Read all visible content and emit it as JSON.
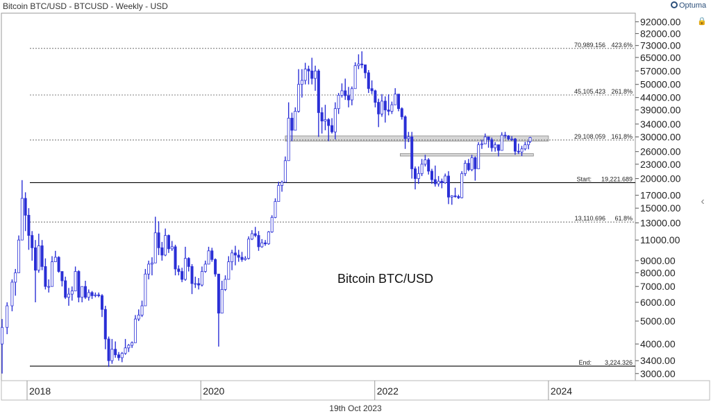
{
  "header": {
    "title": "Bitcoin BTC/USD - BTCUSD - Weekly - USD",
    "brand": "Optuma"
  },
  "footer": {
    "date": "19th Oct 2023"
  },
  "chart_data": {
    "type": "candlestick",
    "title": "Bitcoin BTC/USD - BTCUSD - Weekly - USD",
    "annotation": "Bitcoin BTC/USD",
    "y_scale": "log",
    "ylim": [
      2800,
      100000
    ],
    "xlim": [
      "2017-09-15",
      "2024-12-31"
    ],
    "series_color": "#2a2fd6",
    "y_ticks": [
      {
        "value": 92000,
        "label": "92000.00"
      },
      {
        "value": 82000,
        "label": "82000.00"
      },
      {
        "value": 73000,
        "label": "73000.00"
      },
      {
        "value": 65000,
        "label": "65000.00"
      },
      {
        "value": 57000,
        "label": "57000.00"
      },
      {
        "value": 50000,
        "label": "50000.00"
      },
      {
        "value": 44000,
        "label": "44000.00"
      },
      {
        "value": 39000,
        "label": "39000.00"
      },
      {
        "value": 34000,
        "label": "34000.00"
      },
      {
        "value": 30000,
        "label": "30000.00"
      },
      {
        "value": 26000,
        "label": "26000.00"
      },
      {
        "value": 23000,
        "label": "23000.00"
      },
      {
        "value": 20000,
        "label": "20000.00"
      },
      {
        "value": 17000,
        "label": "17000.00"
      },
      {
        "value": 15000,
        "label": "15000.00"
      },
      {
        "value": 13000,
        "label": "13000.00"
      },
      {
        "value": 11000,
        "label": "11000.00"
      },
      {
        "value": 9000,
        "label": "9000.00"
      },
      {
        "value": 8000,
        "label": "8000.00"
      },
      {
        "value": 7000,
        "label": "7000.00"
      },
      {
        "value": 6000,
        "label": "6000.00"
      },
      {
        "value": 5000,
        "label": "5000.00"
      },
      {
        "value": 4000,
        "label": "4000.00"
      },
      {
        "value": 3400,
        "label": "3400.00"
      },
      {
        "value": 3000,
        "label": "3000.00"
      }
    ],
    "x_ticks": [
      {
        "date": "2018-01-01",
        "label": "2018"
      },
      {
        "date": "2020-01-01",
        "label": "2020"
      },
      {
        "date": "2022-01-01",
        "label": "2022"
      },
      {
        "date": "2024-01-01",
        "label": "2024"
      }
    ],
    "fib_levels": [
      {
        "value": 70989.156,
        "price_label": "70,989.156",
        "pct_label": "423.6%",
        "style": "dotted"
      },
      {
        "value": 45105.423,
        "price_label": "45,105.423",
        "pct_label": "261.8%",
        "style": "dotted"
      },
      {
        "value": 29108.059,
        "price_label": "29,108.059",
        "pct_label": "161.8%",
        "style": "dotted"
      },
      {
        "value": 19221.689,
        "price_label": "19,221.689",
        "pct_label": "Start:",
        "style": "solid"
      },
      {
        "value": 13110.696,
        "price_label": "13,110.696",
        "pct_label": "61.8%",
        "style": "dotted"
      },
      {
        "value": 3224.326,
        "price_label": "3,224.326",
        "pct_label": "End:",
        "style": "solid"
      }
    ],
    "zones": [
      {
        "start": "2020-12-21",
        "end": "2024-01-01",
        "low": 28800,
        "high": 30300,
        "color": "#c8c8c8"
      },
      {
        "start": "2022-04-18",
        "end": "2023-10-30",
        "low": 24900,
        "high": 25500,
        "color": "#c8c8c8"
      }
    ],
    "points": [
      [
        "2017-09-18",
        4000,
        5100,
        3000,
        4700
      ],
      [
        "2017-10-09",
        4700,
        6000,
        4400,
        5800
      ],
      [
        "2017-10-30",
        5800,
        7500,
        5500,
        7300
      ],
      [
        "2017-11-13",
        7300,
        8300,
        6400,
        8000
      ],
      [
        "2017-11-27",
        8000,
        11500,
        8000,
        11000
      ],
      [
        "2017-12-11",
        11000,
        19700,
        11000,
        16500
      ],
      [
        "2017-12-25",
        16500,
        17500,
        12000,
        14000
      ],
      [
        "2018-01-08",
        14000,
        15000,
        10000,
        11500
      ],
      [
        "2018-01-22",
        11500,
        12000,
        9000,
        10200
      ],
      [
        "2018-02-05",
        10200,
        11000,
        6000,
        8200
      ],
      [
        "2018-02-19",
        8200,
        11700,
        8000,
        10400
      ],
      [
        "2018-03-05",
        10400,
        11000,
        8200,
        8500
      ],
      [
        "2018-03-19",
        8500,
        9200,
        6800,
        7000
      ],
      [
        "2018-04-02",
        7000,
        7500,
        6600,
        7000
      ],
      [
        "2018-04-16",
        7000,
        9400,
        7000,
        8900
      ],
      [
        "2018-04-30",
        8900,
        9900,
        8900,
        9300
      ],
      [
        "2018-05-14",
        9300,
        9400,
        8000,
        8100
      ],
      [
        "2018-05-28",
        8100,
        8000,
        7000,
        7400
      ],
      [
        "2018-06-11",
        7400,
        7700,
        6200,
        6300
      ],
      [
        "2018-06-25",
        6300,
        6900,
        5800,
        6500
      ],
      [
        "2018-07-09",
        6500,
        7000,
        6100,
        6700
      ],
      [
        "2018-07-23",
        6700,
        8500,
        6700,
        8100
      ],
      [
        "2018-08-06",
        8100,
        8200,
        6000,
        6300
      ],
      [
        "2018-08-20",
        6300,
        7000,
        6000,
        7000
      ],
      [
        "2018-09-03",
        7000,
        7400,
        6200,
        6300
      ],
      [
        "2018-09-17",
        6300,
        6800,
        6100,
        6600
      ],
      [
        "2018-10-01",
        6600,
        6700,
        6200,
        6400
      ],
      [
        "2018-10-15",
        6400,
        6600,
        6300,
        6450
      ],
      [
        "2018-10-29",
        6450,
        6600,
        6300,
        6400
      ],
      [
        "2018-11-12",
        6400,
        6500,
        5200,
        5600
      ],
      [
        "2018-11-26",
        5600,
        5800,
        3800,
        4200
      ],
      [
        "2018-12-10",
        4200,
        4300,
        3200,
        3400
      ],
      [
        "2018-12-24",
        3400,
        4200,
        3300,
        3800
      ],
      [
        "2019-01-07",
        3800,
        4100,
        3500,
        3600
      ],
      [
        "2019-01-21",
        3600,
        3700,
        3400,
        3500
      ],
      [
        "2019-02-04",
        3500,
        3700,
        3350,
        3650
      ],
      [
        "2019-02-18",
        3650,
        4200,
        3600,
        3850
      ],
      [
        "2019-03-04",
        3850,
        4000,
        3700,
        3950
      ],
      [
        "2019-03-18",
        3950,
        4100,
        3850,
        4050
      ],
      [
        "2019-04-01",
        4050,
        5300,
        4050,
        5100
      ],
      [
        "2019-04-15",
        5100,
        5600,
        5000,
        5300
      ],
      [
        "2019-04-29",
        5300,
        6100,
        5200,
        5800
      ],
      [
        "2019-05-13",
        5800,
        8300,
        5800,
        7900
      ],
      [
        "2019-05-27",
        7900,
        9000,
        7500,
        8700
      ],
      [
        "2019-06-10",
        8700,
        9300,
        7800,
        8800
      ],
      [
        "2019-06-24",
        8800,
        13800,
        8800,
        11800
      ],
      [
        "2019-07-08",
        11800,
        13200,
        9500,
        10200
      ],
      [
        "2019-07-22",
        10200,
        10800,
        9000,
        9500
      ],
      [
        "2019-08-05",
        9500,
        12300,
        9400,
        11500
      ],
      [
        "2019-08-19",
        11500,
        11600,
        9700,
        10100
      ],
      [
        "2019-09-02",
        10100,
        10900,
        9900,
        10300
      ],
      [
        "2019-09-16",
        10300,
        10500,
        7800,
        8300
      ],
      [
        "2019-09-30",
        8300,
        8600,
        7800,
        8100
      ],
      [
        "2019-10-14",
        8100,
        8400,
        7300,
        7500
      ],
      [
        "2019-10-28",
        7500,
        10300,
        7400,
        9200
      ],
      [
        "2019-11-11",
        9200,
        9300,
        8100,
        8500
      ],
      [
        "2019-11-25",
        8500,
        8700,
        6500,
        7200
      ],
      [
        "2019-12-09",
        7200,
        7700,
        6900,
        7200
      ],
      [
        "2019-12-23",
        7200,
        7600,
        6800,
        7100
      ],
      [
        "2020-01-06",
        7100,
        8500,
        7000,
        8100
      ],
      [
        "2020-01-20",
        8100,
        9000,
        8000,
        8700
      ],
      [
        "2020-02-03",
        8700,
        10300,
        8700,
        9900
      ],
      [
        "2020-02-17",
        9900,
        10200,
        8900,
        9100
      ],
      [
        "2020-03-02",
        9100,
        9200,
        7700,
        7900
      ],
      [
        "2020-03-16",
        7900,
        7900,
        3900,
        5400
      ],
      [
        "2020-03-30",
        5400,
        7400,
        5400,
        6800
      ],
      [
        "2020-04-13",
        6800,
        7800,
        6700,
        7500
      ],
      [
        "2020-04-27",
        7500,
        9400,
        7500,
        8900
      ],
      [
        "2020-05-11",
        8900,
        10000,
        8200,
        9700
      ],
      [
        "2020-05-25",
        9700,
        10400,
        8600,
        9500
      ],
      [
        "2020-06-08",
        9500,
        10000,
        8900,
        9300
      ],
      [
        "2020-06-22",
        9300,
        9800,
        8900,
        9100
      ],
      [
        "2020-07-06",
        9100,
        9400,
        9000,
        9200
      ],
      [
        "2020-07-20",
        9200,
        11400,
        9100,
        11100
      ],
      [
        "2020-08-03",
        11100,
        12100,
        11000,
        11700
      ],
      [
        "2020-08-17",
        11700,
        12500,
        11300,
        11500
      ],
      [
        "2020-08-31",
        11500,
        12000,
        9900,
        10300
      ],
      [
        "2020-09-14",
        10300,
        11100,
        10200,
        10700
      ],
      [
        "2020-09-28",
        10700,
        11000,
        10400,
        10600
      ],
      [
        "2020-10-12",
        10600,
        12000,
        10500,
        11900
      ],
      [
        "2020-10-26",
        11900,
        14000,
        11800,
        13700
      ],
      [
        "2020-11-09",
        13700,
        16500,
        13600,
        16000
      ],
      [
        "2020-11-23",
        16000,
        19400,
        16000,
        18700
      ],
      [
        "2020-12-07",
        18700,
        19600,
        17600,
        19300
      ],
      [
        "2020-12-21",
        19300,
        24800,
        19200,
        23800
      ],
      [
        "2021-01-04",
        23800,
        42000,
        23800,
        36000
      ],
      [
        "2021-01-18",
        36000,
        38000,
        28800,
        32000
      ],
      [
        "2021-02-01",
        32000,
        40000,
        32000,
        38500
      ],
      [
        "2021-02-15",
        38500,
        58000,
        38000,
        50000
      ],
      [
        "2021-03-01",
        50000,
        58000,
        44000,
        52000
      ],
      [
        "2021-03-15",
        52000,
        61700,
        50000,
        58000
      ],
      [
        "2021-03-29",
        58000,
        60000,
        50000,
        57000
      ],
      [
        "2021-04-12",
        57000,
        64800,
        50000,
        53000
      ],
      [
        "2021-04-26",
        53000,
        60000,
        47000,
        57000
      ],
      [
        "2021-05-10",
        57000,
        58000,
        30000,
        38000
      ],
      [
        "2021-05-24",
        38000,
        40000,
        31000,
        35000
      ],
      [
        "2021-06-07",
        35000,
        41000,
        32000,
        35500
      ],
      [
        "2021-06-21",
        35500,
        36000,
        28800,
        33500
      ],
      [
        "2021-07-05",
        33500,
        36000,
        31000,
        31500
      ],
      [
        "2021-07-19",
        31500,
        42000,
        29300,
        39500
      ],
      [
        "2021-08-02",
        39500,
        46000,
        37500,
        45000
      ],
      [
        "2021-08-16",
        45000,
        50500,
        44000,
        47000
      ],
      [
        "2021-08-30",
        47000,
        52900,
        43000,
        44800
      ],
      [
        "2021-09-13",
        44800,
        48800,
        40000,
        43000
      ],
      [
        "2021-09-27",
        43000,
        49000,
        40800,
        48000
      ],
      [
        "2021-10-11",
        48000,
        62000,
        48000,
        60000
      ],
      [
        "2021-10-25",
        60000,
        67000,
        58000,
        61000
      ],
      [
        "2021-11-08",
        61000,
        69000,
        58500,
        60500
      ],
      [
        "2021-11-22",
        60500,
        59000,
        53000,
        56000
      ],
      [
        "2021-12-06",
        56000,
        57500,
        46000,
        48000
      ],
      [
        "2021-12-20",
        48000,
        52000,
        45500,
        47000
      ],
      [
        "2022-01-03",
        47000,
        47500,
        40000,
        42000
      ],
      [
        "2022-01-17",
        42000,
        43500,
        33000,
        37500
      ],
      [
        "2022-01-31",
        37500,
        45500,
        36500,
        42500
      ],
      [
        "2022-02-14",
        42500,
        44500,
        34500,
        39000
      ],
      [
        "2022-02-28",
        39000,
        45400,
        37000,
        38500
      ],
      [
        "2022-03-14",
        38500,
        42300,
        37500,
        41000
      ],
      [
        "2022-03-28",
        41000,
        48200,
        41000,
        45500
      ],
      [
        "2022-04-11",
        45500,
        42500,
        38500,
        39500
      ],
      [
        "2022-04-25",
        39500,
        40000,
        35500,
        36500
      ],
      [
        "2022-05-09",
        36500,
        37000,
        26700,
        29500
      ],
      [
        "2022-05-23",
        29500,
        31500,
        28500,
        30000
      ],
      [
        "2022-06-06",
        30000,
        31500,
        20000,
        22000
      ],
      [
        "2022-06-20",
        22000,
        22500,
        18000,
        20000
      ],
      [
        "2022-07-04",
        20000,
        22500,
        19000,
        21000
      ],
      [
        "2022-07-18",
        21000,
        24200,
        20500,
        23000
      ],
      [
        "2022-08-01",
        23000,
        25200,
        22500,
        24000
      ],
      [
        "2022-08-15",
        24000,
        24400,
        20800,
        21500
      ],
      [
        "2022-08-29",
        21500,
        22000,
        19000,
        19800
      ],
      [
        "2022-09-12",
        19800,
        22700,
        18500,
        19000
      ],
      [
        "2022-09-26",
        19000,
        20500,
        18500,
        19500
      ],
      [
        "2022-10-10",
        19500,
        20000,
        18200,
        19200
      ],
      [
        "2022-10-24",
        19200,
        21000,
        19000,
        20500
      ],
      [
        "2022-11-07",
        20500,
        21500,
        15600,
        16700
      ],
      [
        "2022-11-21",
        16700,
        17000,
        15500,
        16900
      ],
      [
        "2022-12-05",
        16900,
        18300,
        16600,
        16800
      ],
      [
        "2022-12-19",
        16800,
        17100,
        16400,
        16600
      ],
      [
        "2023-01-02",
        16600,
        21500,
        16500,
        21000
      ],
      [
        "2023-01-16",
        21000,
        23900,
        20500,
        23200
      ],
      [
        "2023-01-30",
        23200,
        24200,
        21500,
        21800
      ],
      [
        "2023-02-13",
        21800,
        25200,
        21500,
        24500
      ],
      [
        "2023-02-27",
        24500,
        24800,
        19600,
        22000
      ],
      [
        "2023-03-13",
        22000,
        28500,
        22000,
        27800
      ],
      [
        "2023-03-27",
        27800,
        29200,
        26700,
        28000
      ],
      [
        "2023-04-10",
        28000,
        31000,
        28000,
        30000
      ],
      [
        "2023-04-24",
        30000,
        30000,
        27000,
        29200
      ],
      [
        "2023-05-08",
        29200,
        29800,
        26000,
        27000
      ],
      [
        "2023-05-22",
        27000,
        28500,
        26000,
        27800
      ],
      [
        "2023-06-05",
        27800,
        27500,
        24800,
        26300
      ],
      [
        "2023-06-19",
        26300,
        31400,
        26300,
        30500
      ],
      [
        "2023-07-03",
        30500,
        31500,
        29500,
        30300
      ],
      [
        "2023-07-17",
        30300,
        30500,
        29000,
        29400
      ],
      [
        "2023-07-31",
        29400,
        30200,
        28800,
        29400
      ],
      [
        "2023-08-14",
        29400,
        29700,
        25200,
        26100
      ],
      [
        "2023-08-28",
        26100,
        28100,
        25400,
        25900
      ],
      [
        "2023-09-11",
        25900,
        27500,
        24900,
        26700
      ],
      [
        "2023-09-25",
        26700,
        28600,
        26300,
        27800
      ],
      [
        "2023-10-09",
        27800,
        28500,
        26600,
        28700
      ],
      [
        "2023-10-16",
        28700,
        30000,
        28300,
        29800
      ]
    ]
  }
}
